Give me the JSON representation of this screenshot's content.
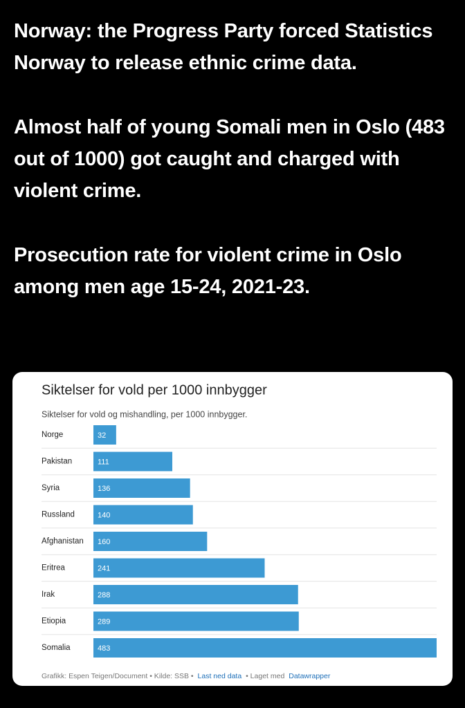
{
  "post": {
    "paragraphs": [
      "Norway: the Progress Party forced Statistics Norway to release ethnic crime data.",
      "Almost half of young Somali men in Oslo (483 out of 1000) got caught and charged with violent crime.",
      "Prosecution rate for violent crime in Oslo among men age 15-24, 2021-23."
    ]
  },
  "chart_data": {
    "type": "bar",
    "orientation": "horizontal",
    "title": "Siktelser for vold per 1000 innbygger",
    "subtitle": "Siktelser for vold og mishandling, per 1000 innbygger.",
    "categories": [
      "Norge",
      "Pakistan",
      "Syria",
      "Russland",
      "Afghanistan",
      "Eritrea",
      "Irak",
      "Etiopia",
      "Somalia"
    ],
    "values": [
      32,
      111,
      136,
      140,
      160,
      241,
      288,
      289,
      483
    ],
    "color": "#3d9ad3",
    "footer": [
      "Grafikk: Espen Teigen/Document • Kilde: SSB •",
      "Last ned data",
      "• Laget med",
      "Datawrapper"
    ]
  }
}
